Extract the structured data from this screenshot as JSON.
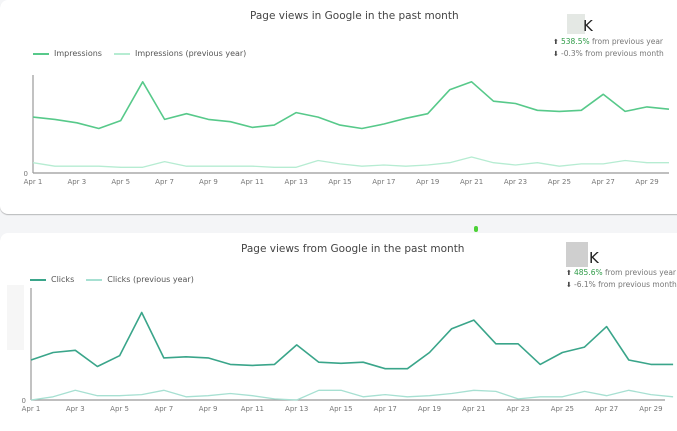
{
  "colors": {
    "impressions": "#57c98a",
    "impressions_prev": "#b6ecd2",
    "clicks": "#3aa58a",
    "clicks_prev": "#a7e0d2",
    "up": "#2e9b47",
    "axis": "#999999",
    "indicator": "#4cd137"
  },
  "panel1": {
    "title": "Page views in Google in the past month",
    "legend": [
      "Impressions",
      "Impressions (previous year)"
    ],
    "kpi": {
      "value_unit": "K",
      "yoy_arrow": "⬆",
      "yoy_pct": "538.5%",
      "yoy_text": " from previous year",
      "mom_arrow": "⬇",
      "mom_text": "-0.3% from previous month"
    },
    "y_zero": "0"
  },
  "panel2": {
    "title": "Page views from Google in the past month",
    "legend": [
      "Clicks",
      "Clicks (previous year)"
    ],
    "kpi": {
      "value_unit": "K",
      "yoy_arrow": "⬆",
      "yoy_pct": "485.6%",
      "yoy_text": " from previous year",
      "mom_arrow": "⬇",
      "mom_text": "-6.1% from previous month"
    },
    "y_zero": "0"
  },
  "chart_data": [
    {
      "type": "line",
      "title": "Page views in Google in the past month",
      "xlabel": "",
      "ylabel": "",
      "x": [
        "Apr 1",
        "Apr 2",
        "Apr 3",
        "Apr 4",
        "Apr 5",
        "Apr 6",
        "Apr 7",
        "Apr 8",
        "Apr 9",
        "Apr 10",
        "Apr 11",
        "Apr 12",
        "Apr 13",
        "Apr 14",
        "Apr 15",
        "Apr 16",
        "Apr 17",
        "Apr 18",
        "Apr 19",
        "Apr 20",
        "Apr 21",
        "Apr 22",
        "Apr 23",
        "Apr 24",
        "Apr 25",
        "Apr 26",
        "Apr 27",
        "Apr 28",
        "Apr 29",
        "Apr 30"
      ],
      "tick_labels": [
        "Apr 1",
        "Apr 3",
        "Apr 5",
        "Apr 7",
        "Apr 9",
        "Apr 11",
        "Apr 13",
        "Apr 15",
        "Apr 17",
        "Apr 19",
        "Apr 21",
        "Apr 23",
        "Apr 25",
        "Apr 27",
        "Apr 29"
      ],
      "series": [
        {
          "name": "Impressions",
          "values": [
            49,
            47,
            44,
            39,
            46,
            80,
            47,
            52,
            47,
            45,
            40,
            42,
            53,
            49,
            42,
            39,
            43,
            48,
            52,
            73,
            80,
            63,
            61,
            55,
            54,
            55,
            69,
            54,
            58,
            56
          ]
        },
        {
          "name": "Impressions (previous year)",
          "values": [
            9,
            6,
            6,
            6,
            5,
            5,
            10,
            6,
            6,
            6,
            6,
            5,
            5,
            11,
            8,
            6,
            7,
            6,
            7,
            9,
            14,
            9,
            7,
            9,
            6,
            8,
            8,
            11,
            9,
            9
          ]
        }
      ],
      "ylim": [
        0,
        100
      ],
      "y_tick_labels": [
        "0"
      ],
      "legend_position": "top-left",
      "grid": false
    },
    {
      "type": "line",
      "title": "Page views from Google in the past month",
      "xlabel": "",
      "ylabel": "",
      "x": [
        "Apr 1",
        "Apr 2",
        "Apr 3",
        "Apr 4",
        "Apr 5",
        "Apr 6",
        "Apr 7",
        "Apr 8",
        "Apr 9",
        "Apr 10",
        "Apr 11",
        "Apr 12",
        "Apr 13",
        "Apr 14",
        "Apr 15",
        "Apr 16",
        "Apr 17",
        "Apr 18",
        "Apr 19",
        "Apr 20",
        "Apr 21",
        "Apr 22",
        "Apr 23",
        "Apr 24",
        "Apr 25",
        "Apr 26",
        "Apr 27",
        "Apr 28",
        "Apr 29",
        "Apr 30"
      ],
      "tick_labels": [
        "Apr 1",
        "Apr 3",
        "Apr 5",
        "Apr 7",
        "Apr 9",
        "Apr 11",
        "Apr 13",
        "Apr 15",
        "Apr 17",
        "Apr 19",
        "Apr 21",
        "Apr 23",
        "Apr 25",
        "Apr 27",
        "Apr 29"
      ],
      "series": [
        {
          "name": "Clicks",
          "values": [
            37,
            44,
            46,
            31,
            41,
            81,
            39,
            40,
            39,
            33,
            32,
            33,
            51,
            35,
            34,
            35,
            29,
            29,
            44,
            66,
            74,
            52,
            52,
            33,
            44,
            49,
            68,
            37,
            33,
            33
          ]
        },
        {
          "name": "Clicks (previous year)",
          "values": [
            0,
            3,
            9,
            4,
            4,
            5,
            9,
            3,
            4,
            6,
            4,
            1,
            0,
            9,
            9,
            3,
            5,
            3,
            4,
            6,
            9,
            8,
            1,
            3,
            3,
            8,
            4,
            9,
            5,
            3
          ]
        }
      ],
      "ylim": [
        0,
        100
      ],
      "y_tick_labels": [
        "0"
      ],
      "legend_position": "top-left",
      "grid": false
    }
  ]
}
